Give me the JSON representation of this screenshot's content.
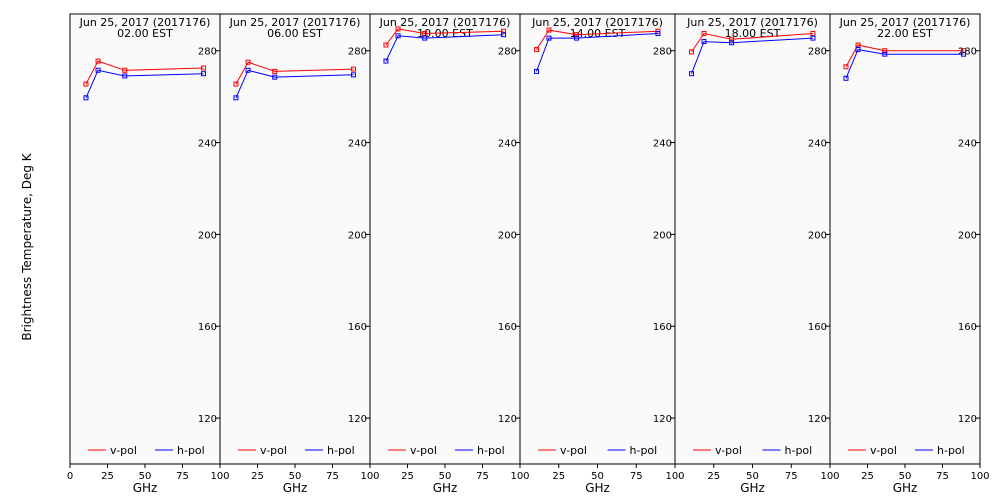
{
  "chart_data": {
    "type": "line",
    "ylabel": "Brightness Temperature, Deg K",
    "xlabel": "GHz",
    "xlim": [
      0,
      100
    ],
    "ylim": [
      100,
      296
    ],
    "xticks": [
      0,
      25,
      50,
      75,
      100
    ],
    "xtick_labels_first_panel": [
      "0",
      "25",
      "50",
      "75",
      "100"
    ],
    "xtick_labels_other_panels": [
      "",
      "25",
      "50",
      "75",
      "100"
    ],
    "yticks": [
      120,
      160,
      200,
      240,
      280
    ],
    "ytick_labels": [
      "120",
      "160",
      "200",
      "240",
      "280"
    ],
    "grid": false,
    "legend_placement": "bottom",
    "colors": {
      "v-pol": "#ff0000",
      "h-pol": "#0000ff",
      "background": "#fafafa"
    },
    "x": [
      10.65,
      18.7,
      36.5,
      89.0
    ],
    "panels": [
      {
        "title": "Jun 25, 2017 (2017176)",
        "subtitle": "02.00 EST",
        "series": [
          {
            "name": "v-pol",
            "values": [
              265.5,
              275.5,
              271.5,
              272.5
            ]
          },
          {
            "name": "h-pol",
            "values": [
              259.5,
              271.5,
              269.0,
              270.0
            ]
          }
        ]
      },
      {
        "title": "Jun 25, 2017 (2017176)",
        "subtitle": "06.00 EST",
        "series": [
          {
            "name": "v-pol",
            "values": [
              265.5,
              275.0,
              271.0,
              272.0
            ]
          },
          {
            "name": "h-pol",
            "values": [
              259.5,
              271.5,
              268.5,
              269.5
            ]
          }
        ]
      },
      {
        "title": "Jun 25, 2017 (2017176)",
        "subtitle": "10.00 EST",
        "series": [
          {
            "name": "v-pol",
            "values": [
              282.5,
              289.5,
              287.5,
              288.5
            ]
          },
          {
            "name": "h-pol",
            "values": [
              275.5,
              286.5,
              285.5,
              287.0
            ]
          }
        ]
      },
      {
        "title": "Jun 25, 2017 (2017176)",
        "subtitle": "14.00 EST",
        "series": [
          {
            "name": "v-pol",
            "values": [
              280.5,
              289.0,
              287.0,
              288.5
            ]
          },
          {
            "name": "h-pol",
            "values": [
              271.0,
              285.5,
              285.5,
              287.5
            ]
          }
        ]
      },
      {
        "title": "Jun 25, 2017 (2017176)",
        "subtitle": "18.00 EST",
        "series": [
          {
            "name": "v-pol",
            "values": [
              279.5,
              287.5,
              285.0,
              287.5
            ]
          },
          {
            "name": "h-pol",
            "values": [
              270.0,
              284.0,
              283.5,
              285.5
            ]
          }
        ]
      },
      {
        "title": "Jun 25, 2017 (2017176)",
        "subtitle": "22.00 EST",
        "series": [
          {
            "name": "v-pol",
            "values": [
              273.0,
              282.5,
              280.0,
              280.0
            ]
          },
          {
            "name": "h-pol",
            "values": [
              268.0,
              280.5,
              278.5,
              278.5
            ]
          }
        ]
      }
    ]
  }
}
